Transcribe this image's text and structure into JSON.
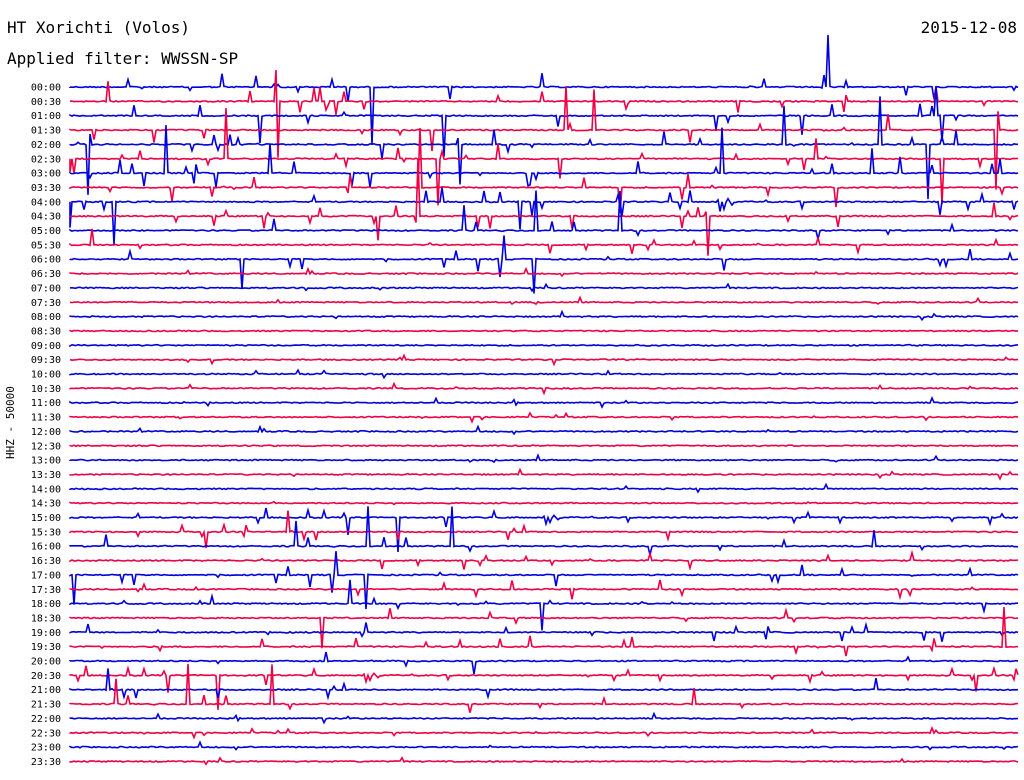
{
  "header": {
    "station": "HT Xorichti (Volos)",
    "filter": "Applied filter: WWSSN-SP",
    "date": "2015-12-08"
  },
  "chart_data": {
    "type": "line",
    "title": "HT Xorichti (Volos)",
    "subtitle": "Applied filter: WWSSN-SP",
    "ylabel": "HHZ - 50000",
    "xlabel": "",
    "grid": false,
    "colors": {
      "even_row": "#0000dd",
      "odd_row": "#ee0044",
      "text": "#000000"
    },
    "rows": [
      "00:00",
      "00:30",
      "01:00",
      "01:30",
      "02:00",
      "02:30",
      "03:00",
      "03:30",
      "04:00",
      "04:30",
      "05:00",
      "05:30",
      "06:00",
      "06:30",
      "07:00",
      "07:30",
      "08:00",
      "08:30",
      "09:00",
      "09:30",
      "10:00",
      "10:30",
      "11:00",
      "11:30",
      "12:00",
      "12:30",
      "13:00",
      "13:30",
      "14:00",
      "14:30",
      "15:00",
      "15:30",
      "16:00",
      "16:30",
      "17:00",
      "17:30",
      "18:00",
      "18:30",
      "19:00",
      "19:30",
      "20:00",
      "20:30",
      "21:00",
      "21:30",
      "22:00",
      "22:30",
      "23:00",
      "23:30"
    ],
    "activity_level": [
      3,
      3,
      3,
      3,
      3,
      3,
      3,
      3,
      3,
      3,
      2,
      2,
      2,
      1,
      1,
      1,
      1,
      0,
      0,
      1,
      1,
      1,
      1,
      1,
      1,
      0,
      1,
      1,
      1,
      1,
      2,
      2,
      2,
      2,
      2,
      2,
      2,
      2,
      2,
      2,
      2,
      2,
      2,
      2,
      1,
      1,
      1,
      1
    ]
  }
}
